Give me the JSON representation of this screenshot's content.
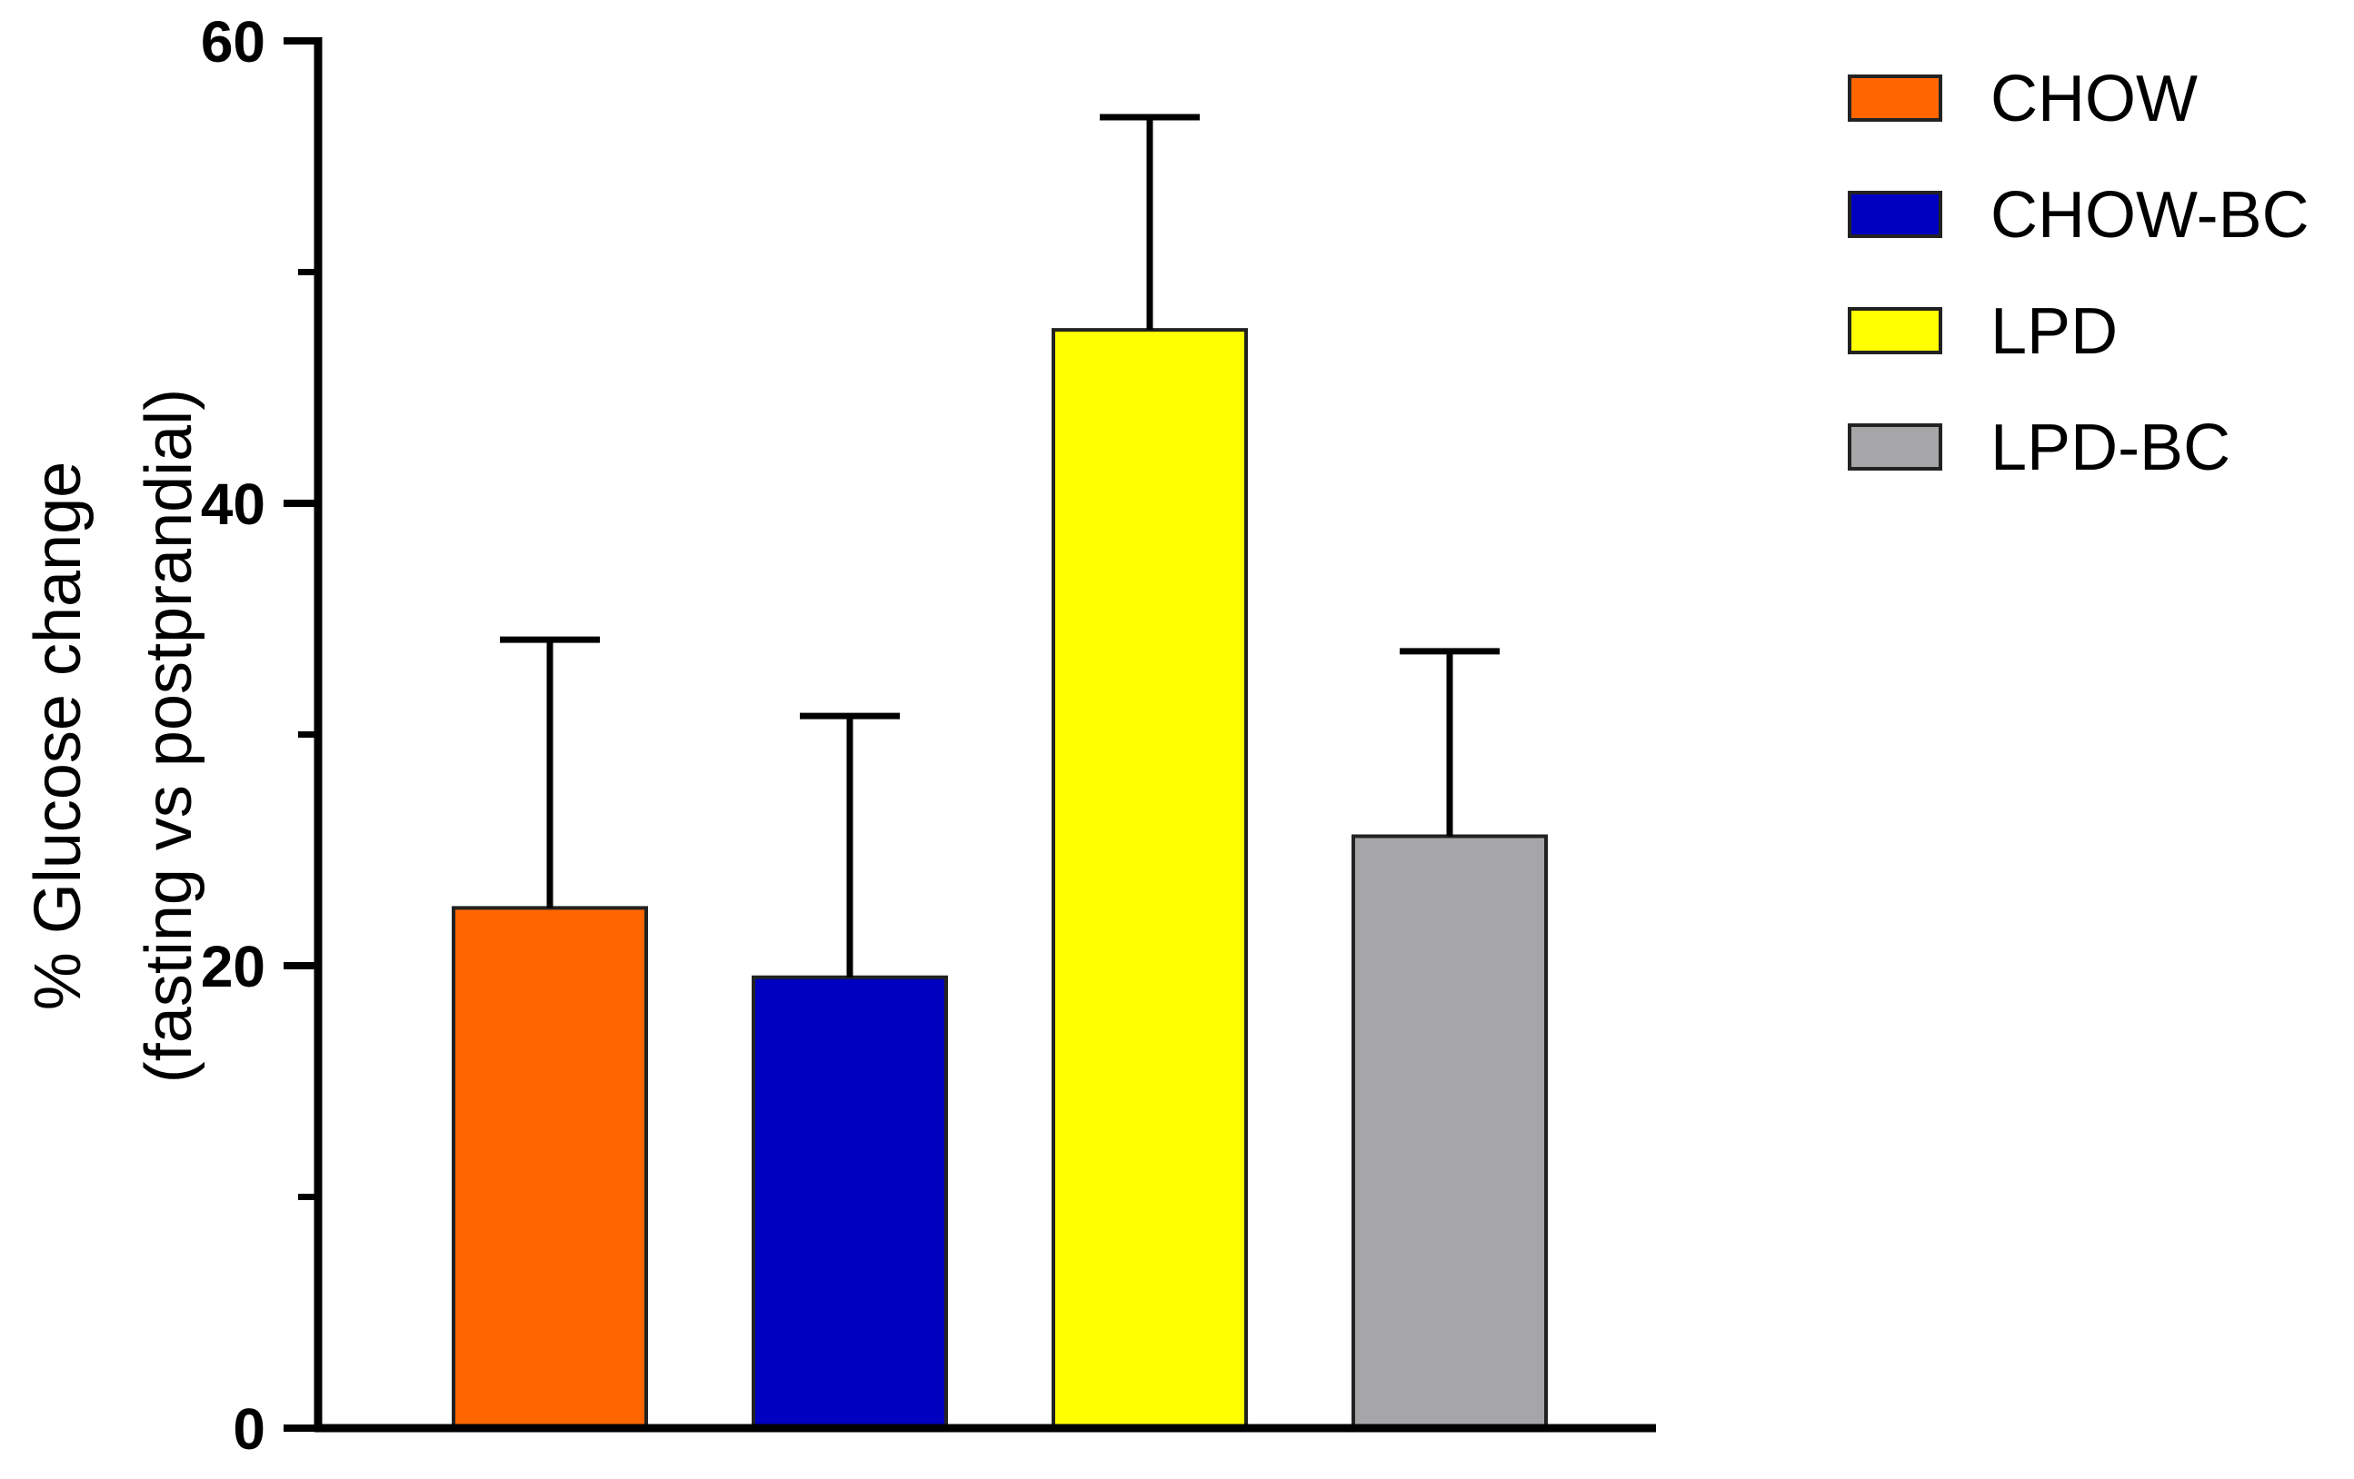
{
  "chart_data": {
    "type": "bar",
    "categories": [
      "CHOW",
      "CHOW-BC",
      "LPD",
      "LPD-BC"
    ],
    "values": [
      22.5,
      19.5,
      47.5,
      25.6
    ],
    "error_upper": [
      34.1,
      30.8,
      56.7,
      33.6
    ],
    "colors": [
      "#ff6600",
      "#0000c0",
      "#ffff00",
      "#a6a6a8"
    ],
    "ylabel_line1": "% Glucose change",
    "ylabel_line2": "(fasting vs postprandial)",
    "xlabel": "",
    "title": "",
    "ylim": [
      0,
      60
    ],
    "yticks_major": [
      0,
      20,
      40,
      60
    ],
    "yticks_minor": [
      10,
      30,
      50
    ],
    "tick_labels": [
      "0",
      "20",
      "40",
      "60"
    ],
    "legend": {
      "position": "top-right",
      "entries": [
        "CHOW",
        "CHOW-BC",
        "LPD",
        "LPD-BC"
      ]
    },
    "grid": false
  }
}
